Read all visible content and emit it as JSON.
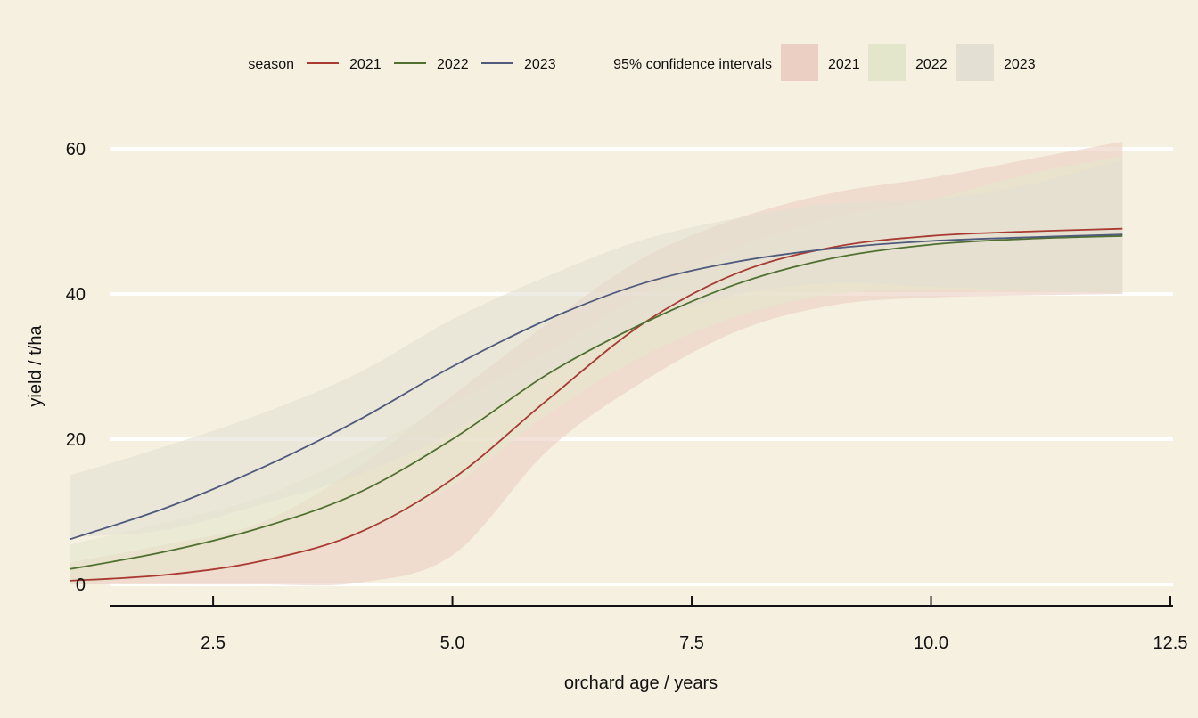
{
  "chart_data": {
    "type": "line",
    "xlabel": "orchard age / years",
    "ylabel": "yield / t/ha",
    "xlim": [
      1.0,
      12.5
    ],
    "ylim": [
      -1,
      62
    ],
    "xticks": [
      2.5,
      5.0,
      7.5,
      10.0,
      12.5
    ],
    "xtick_labels": [
      "2.5",
      "5.0",
      "7.5",
      "10.0",
      "12.5"
    ],
    "yticks": [
      0,
      20,
      40,
      60
    ],
    "ytick_labels": [
      "0",
      "20",
      "40",
      "60"
    ],
    "grid": "horizontal",
    "legend": {
      "placement": "top",
      "line_title": "season",
      "band_title": "95% confidence intervals",
      "entries": [
        "2021",
        "2022",
        "2023"
      ]
    },
    "x": [
      1.0,
      2.0,
      3.0,
      4.0,
      5.0,
      6.0,
      7.0,
      8.0,
      9.0,
      10.0,
      11.0,
      12.0
    ],
    "series": [
      {
        "name": "2021",
        "color": "#a83a32",
        "band_color": "#ebcfc2",
        "values": [
          0.5,
          1.3,
          3.2,
          7.0,
          14.5,
          25.5,
          36.0,
          43.0,
          46.5,
          48.0,
          48.6,
          49.0
        ],
        "lower": [
          0.0,
          0.0,
          0.0,
          0.2,
          4.0,
          18.5,
          28.0,
          35.0,
          38.5,
          39.5,
          39.8,
          40.0
        ],
        "upper": [
          3.0,
          5.5,
          8.5,
          16.0,
          26.0,
          36.0,
          45.0,
          50.5,
          54.0,
          56.0,
          58.5,
          61.0
        ]
      },
      {
        "name": "2022",
        "color": "#4f7030",
        "band_color": "#e4e6cc",
        "values": [
          2.1,
          4.5,
          7.8,
          12.5,
          20.0,
          29.0,
          36.0,
          41.5,
          45.0,
          46.8,
          47.6,
          48.0
        ],
        "lower": [
          0.0,
          1.5,
          3.5,
          7.0,
          13.5,
          23.5,
          31.5,
          37.0,
          40.0,
          40.5,
          40.5,
          40.5
        ],
        "upper": [
          5.5,
          8.5,
          12.0,
          18.0,
          25.0,
          32.0,
          40.0,
          46.5,
          50.5,
          53.0,
          56.5,
          59.0
        ]
      },
      {
        "name": "2023",
        "color": "#4f5a7c",
        "band_color": "#e3dfd2",
        "values": [
          6.2,
          10.5,
          16.0,
          22.5,
          30.0,
          36.5,
          41.5,
          44.5,
          46.3,
          47.3,
          47.8,
          48.2
        ],
        "lower": [
          6.5,
          7.5,
          11.0,
          15.0,
          21.0,
          29.0,
          36.0,
          40.0,
          41.5,
          41.0,
          40.5,
          40.0
        ],
        "upper": [
          15.0,
          19.0,
          23.5,
          29.0,
          36.5,
          42.5,
          47.5,
          50.5,
          52.5,
          53.0,
          55.0,
          58.5
        ]
      }
    ]
  }
}
